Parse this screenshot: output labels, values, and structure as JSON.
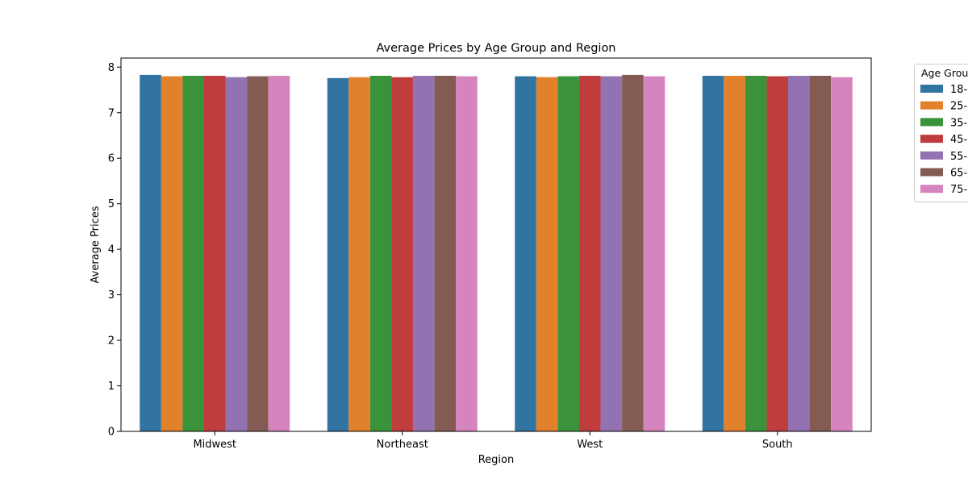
{
  "chart_data": {
    "type": "bar",
    "title": "Average Prices by Age Group and Region",
    "xlabel": "Region",
    "ylabel": "Average Prices",
    "categories": [
      "Midwest",
      "Northeast",
      "West",
      "South"
    ],
    "ylim": [
      0,
      8.2
    ],
    "yticks": [
      "0",
      "1",
      "2",
      "3",
      "4",
      "5",
      "6",
      "7",
      "8"
    ],
    "grid": false,
    "legend": {
      "title": "Age Grou",
      "placement": "outside-right-top"
    },
    "series": [
      {
        "name": "18-",
        "color": "#3274a1",
        "values": [
          7.83,
          7.76,
          7.8,
          7.81
        ]
      },
      {
        "name": "25-",
        "color": "#e1812c",
        "values": [
          7.8,
          7.78,
          7.78,
          7.81
        ]
      },
      {
        "name": "35-",
        "color": "#3a923a",
        "values": [
          7.81,
          7.81,
          7.8,
          7.81
        ]
      },
      {
        "name": "45-",
        "color": "#c03d3e",
        "values": [
          7.81,
          7.78,
          7.81,
          7.8
        ]
      },
      {
        "name": "55-",
        "color": "#9372b2",
        "values": [
          7.78,
          7.81,
          7.8,
          7.81
        ]
      },
      {
        "name": "65-",
        "color": "#845b53",
        "values": [
          7.8,
          7.81,
          7.83,
          7.81
        ]
      },
      {
        "name": "75-",
        "color": "#d684bd",
        "values": [
          7.81,
          7.8,
          7.8,
          7.78
        ]
      }
    ]
  }
}
